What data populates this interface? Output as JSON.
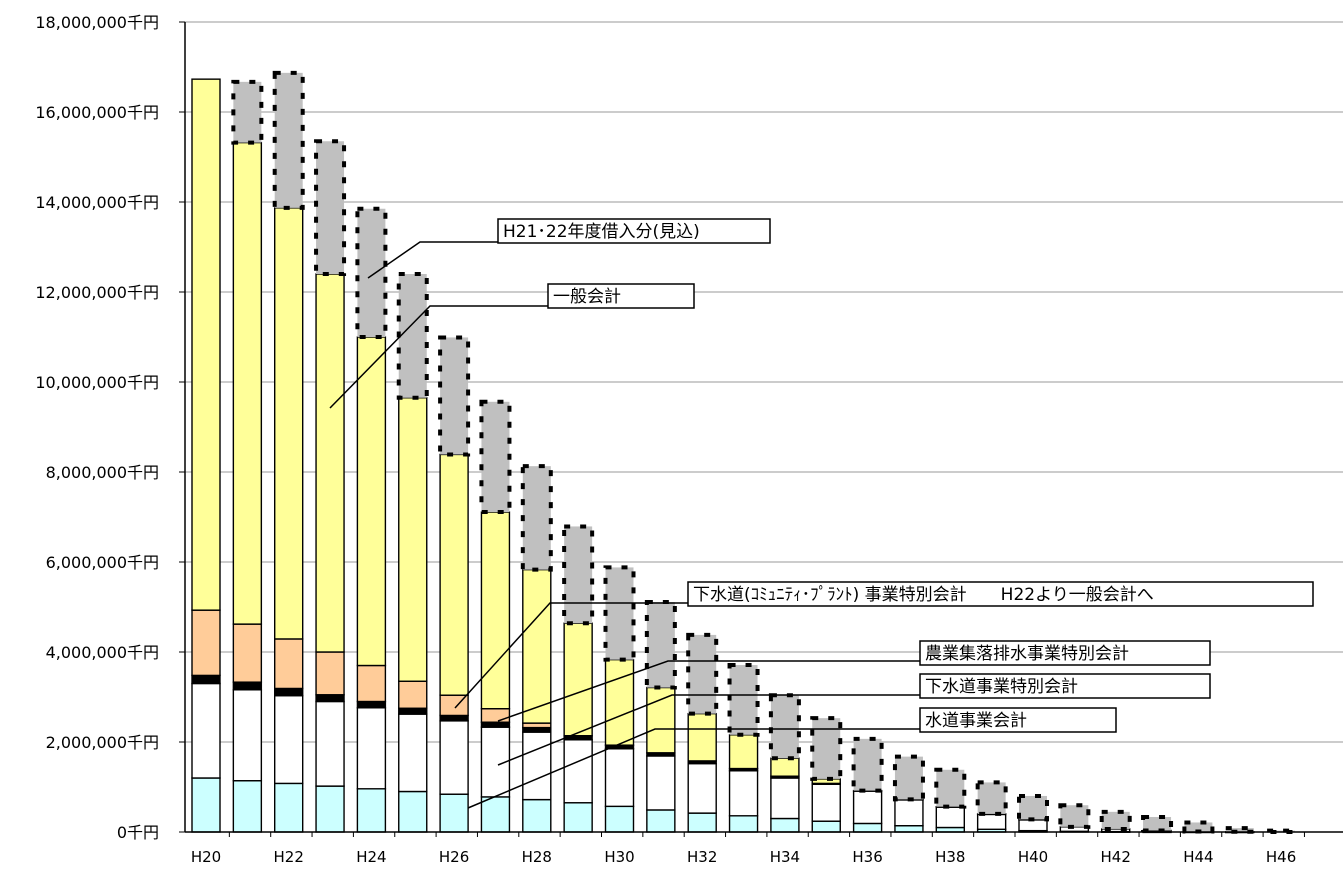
{
  "chart_data": {
    "type": "bar",
    "stacked": true,
    "title": "",
    "xlabel": "",
    "ylabel": "",
    "ylim": [
      0,
      18000000
    ],
    "y_unit": "千円",
    "y_ticks": [
      "0千円",
      "2,000,000千円",
      "4,000,000千円",
      "6,000,000千円",
      "8,000,000千円",
      "10,000,000千円",
      "12,000,000千円",
      "14,000,000千円",
      "16,000,000千円",
      "18,000,000千円"
    ],
    "grid": true,
    "categories": [
      "H20",
      "H21",
      "H22",
      "H23",
      "H24",
      "H25",
      "H26",
      "H27",
      "H28",
      "H29",
      "H30",
      "H31",
      "H32",
      "H33",
      "H34",
      "H35",
      "H36",
      "H37",
      "H38",
      "H39",
      "H40",
      "H41",
      "H42",
      "H43",
      "H44",
      "H45",
      "H46"
    ],
    "x_tick_labels": [
      "H20",
      "H22",
      "H24",
      "H26",
      "H28",
      "H30",
      "H32",
      "H34",
      "H36",
      "H38",
      "H40",
      "H42",
      "H44",
      "H46"
    ],
    "series": [
      {
        "name": "水道事業会計",
        "color": "#ccffff",
        "values": [
          1200000,
          1140000,
          1080000,
          1020000,
          960000,
          900000,
          840000,
          780000,
          720000,
          650000,
          570000,
          490000,
          420000,
          360000,
          300000,
          240000,
          190000,
          140000,
          100000,
          60000,
          30000,
          15000,
          8000,
          4000,
          2000,
          1000,
          0
        ]
      },
      {
        "name": "下水道事業特別会計",
        "color": "#ffffff",
        "values": [
          2100000,
          2020000,
          1950000,
          1880000,
          1800000,
          1720000,
          1630000,
          1550000,
          1500000,
          1400000,
          1280000,
          1200000,
          1100000,
          1000000,
          900000,
          820000,
          720000,
          580000,
          460000,
          340000,
          250000,
          100000,
          60000,
          30000,
          10000,
          5000,
          0
        ]
      },
      {
        "name": "農業集落排水事業特別会計",
        "color": "#000000",
        "values": [
          180000,
          170000,
          160000,
          150000,
          140000,
          130000,
          120000,
          110000,
          100000,
          90000,
          80000,
          70000,
          60000,
          50000,
          40000,
          20000,
          10000,
          5000,
          3000,
          2000,
          1000,
          0,
          0,
          0,
          0,
          0,
          0
        ]
      },
      {
        "name": "下水道(ｺﾐｭﾆﾃｨ･ﾌﾟﾗﾝﾄ) 事業特別会計　　H22より一般会計へ",
        "color": "#ffcc99",
        "values": [
          1450000,
          1290000,
          1100000,
          950000,
          800000,
          600000,
          450000,
          300000,
          100000,
          0,
          0,
          0,
          0,
          0,
          0,
          0,
          0,
          0,
          0,
          0,
          0,
          0,
          0,
          0,
          0,
          0,
          0
        ]
      },
      {
        "name": "一般会計",
        "color": "#ffff99",
        "values": [
          11800000,
          10700000,
          9580000,
          8400000,
          7300000,
          6300000,
          5350000,
          4370000,
          3410000,
          2500000,
          1900000,
          1450000,
          1050000,
          750000,
          400000,
          100000,
          0,
          0,
          0,
          0,
          0,
          0,
          0,
          0,
          0,
          0,
          0
        ]
      },
      {
        "name": "H21・22年度借入分(見込)",
        "color": "#c0c0c0",
        "values": [
          0,
          1350000,
          3000000,
          2950000,
          2850000,
          2750000,
          2600000,
          2450000,
          2300000,
          2150000,
          2050000,
          1900000,
          1750000,
          1550000,
          1400000,
          1350000,
          1150000,
          950000,
          820000,
          700000,
          520000,
          480000,
          380000,
          300000,
          200000,
          80000,
          30000
        ]
      }
    ],
    "callouts": [
      {
        "series": "H21・22年度借入分(見込)",
        "text": "H21･22年度借入分(見込)"
      },
      {
        "series": "一般会計",
        "text": "一般会計"
      },
      {
        "series": "下水道(ｺﾐｭﾆﾃｨ･ﾌﾟﾗﾝﾄ) 事業特別会計",
        "text": "下水道(ｺﾐｭﾆﾃｨ･ﾌﾟﾗﾝﾄ) 事業特別会計　　H22より一般会計へ"
      },
      {
        "series": "農業集落排水事業特別会計",
        "text": "農業集落排水事業特別会計"
      },
      {
        "series": "下水道事業特別会計",
        "text": "下水道事業特別会計"
      },
      {
        "series": "水道事業会計",
        "text": "水道事業会計"
      }
    ]
  }
}
